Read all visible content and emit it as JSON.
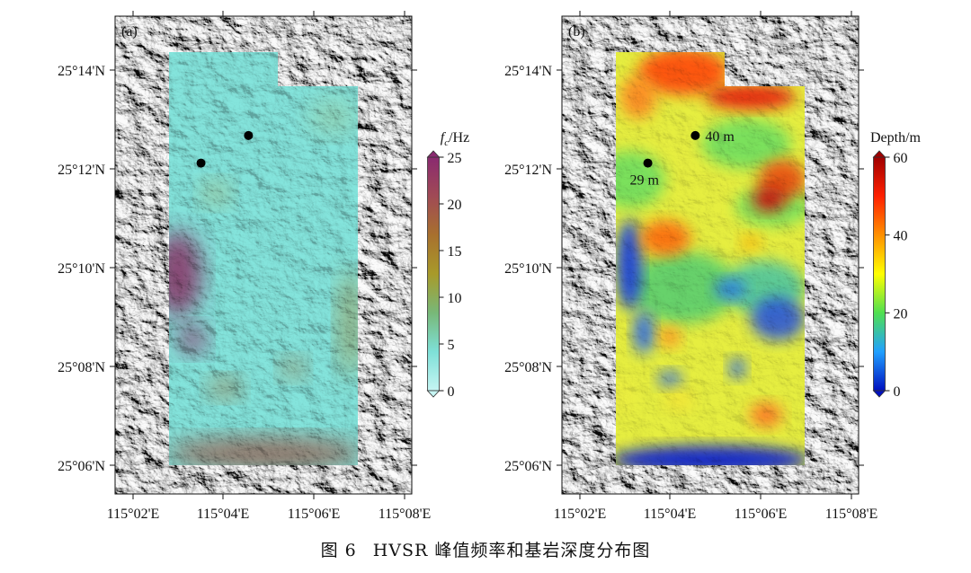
{
  "caption": {
    "figure": "图 6",
    "title": "HVSR 峰值频率和基岩深度分布图"
  },
  "axes": {
    "lat_ticks": [
      "25°14'N",
      "25°12'N",
      "25°10'N",
      "25°08'N",
      "25°06'N"
    ],
    "lon_ticks": [
      "115°02'E",
      "115°04'E",
      "115°06'E",
      "115°08'E"
    ]
  },
  "panels": [
    {
      "id": "a",
      "label": "(a)",
      "colorbar": {
        "title_main": "f",
        "title_sub": "c",
        "title_unit": "/Hz",
        "ticks": [
          "25",
          "20",
          "15",
          "10",
          "5",
          "0"
        ],
        "colors": [
          "#8a2a70",
          "#a04a55",
          "#a8702e",
          "#a89a2a",
          "#78b878",
          "#7ee0d8",
          "#c6f5f3"
        ]
      },
      "points": [
        {
          "lon": 115.0583,
          "lat": 25.2017,
          "label": ""
        },
        {
          "lon": 115.0767,
          "lat": 25.2117,
          "label": ""
        }
      ]
    },
    {
      "id": "b",
      "label": "(b)",
      "colorbar": {
        "title_main": "Depth/m",
        "title_sub": "",
        "title_unit": "",
        "ticks": [
          "60",
          "40",
          "20",
          "0"
        ],
        "colors": [
          "#a00000",
          "#ff2000",
          "#ff9000",
          "#ffff00",
          "#50e050",
          "#20a0ff",
          "#0010c0"
        ]
      },
      "points": [
        {
          "lon": 115.0583,
          "lat": 25.2017,
          "label": "29 m"
        },
        {
          "lon": 115.0767,
          "lat": 25.2117,
          "label": "40 m"
        }
      ]
    }
  ]
}
